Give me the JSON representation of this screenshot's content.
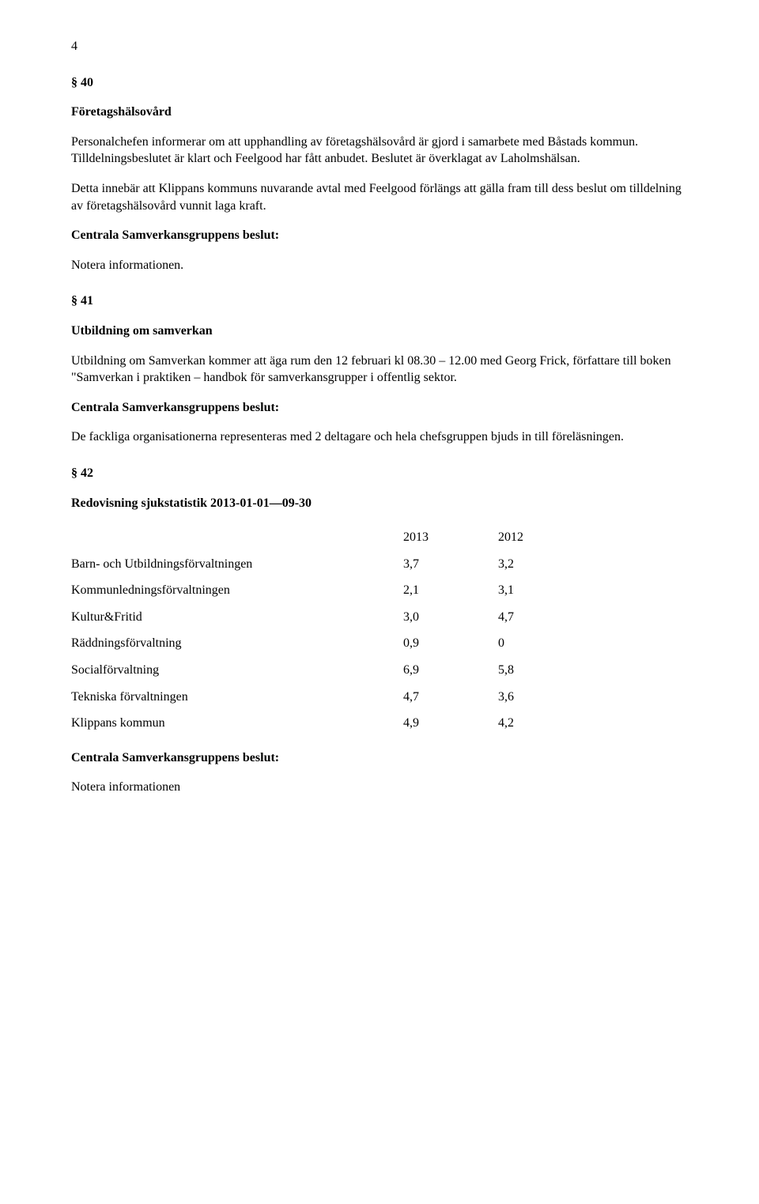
{
  "page_number": "4",
  "sections": [
    {
      "num": "§ 40",
      "title": "Företagshälsovård",
      "paras": [
        "Personalchefen informerar om att upphandling av företagshälsovård är gjord i samarbete med Båstads kommun. Tilldelningsbeslutet är klart och Feelgood har fått anbudet. Beslutet är överklagat av Laholmshälsan.",
        "Detta innebär att Klippans kommuns nuvarande avtal med Feelgood förlängs att gälla fram till  dess beslut om tilldelning av företagshälsovård vunnit laga kraft."
      ],
      "decision_heading": "Centrala Samverkansgruppens beslut:",
      "decision_text": "Notera informationen."
    },
    {
      "num": "§ 41",
      "title": "Utbildning om samverkan",
      "paras": [
        "Utbildning om Samverkan kommer att äga rum den 12 februari kl 08.30 – 12.00 med Georg Frick, författare till boken \"Samverkan i praktiken – handbok för samverkansgrupper i offentlig sektor."
      ],
      "decision_heading": "Centrala Samverkansgruppens beslut:",
      "decision_text": "De fackliga organisationerna representeras med 2 deltagare och hela chefsgruppen bjuds in till föreläsningen."
    },
    {
      "num": "§ 42",
      "title": "Redovisning sjukstatistik 2013-01-01—09-30",
      "table": {
        "year_headers": [
          "2013",
          "2012"
        ],
        "rows": [
          {
            "label": "Barn- och Utbildningsförvaltningen",
            "v2013": "3,7",
            "v2012": "3,2"
          },
          {
            "label": "Kommunledningsförvaltningen",
            "v2013": "2,1",
            "v2012": "3,1"
          },
          {
            "label": "Kultur&Fritid",
            "v2013": "3,0",
            "v2012": "4,7"
          },
          {
            "label": "Räddningsförvaltning",
            "v2013": "0,9",
            "v2012": "0"
          },
          {
            "label": "Socialförvaltning",
            "v2013": "6,9",
            "v2012": "5,8"
          },
          {
            "label": "Tekniska förvaltningen",
            "v2013": "4,7",
            "v2012": "3,6"
          },
          {
            "label": "Klippans kommun",
            "v2013": "4,9",
            "v2012": "4,2"
          }
        ]
      },
      "decision_heading": "Centrala Samverkansgruppens beslut:",
      "decision_text": "Notera informationen"
    }
  ]
}
